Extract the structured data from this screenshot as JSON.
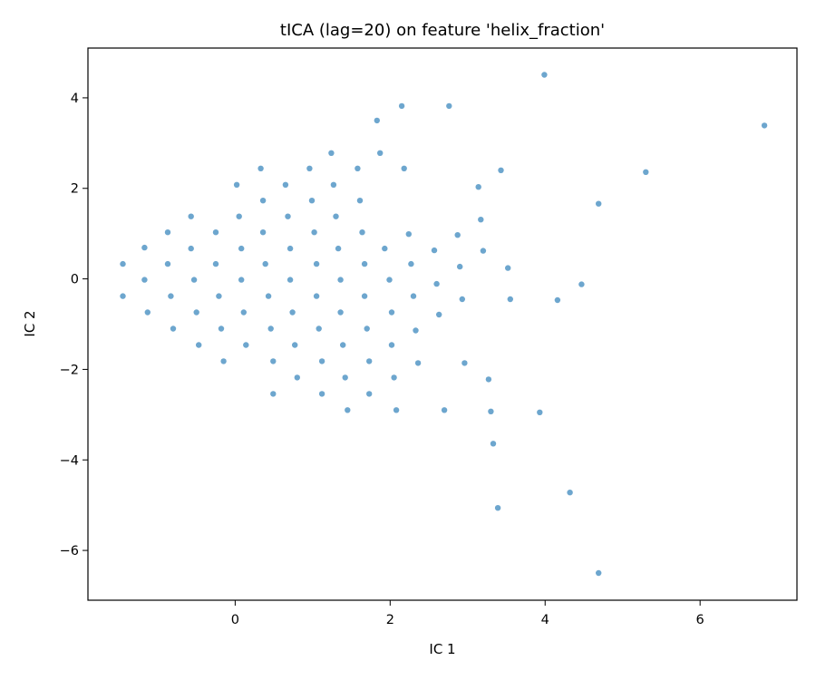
{
  "chart_data": {
    "type": "scatter",
    "title": "tICA (lag=20) on feature 'helix_fraction'",
    "xlabel": "IC 1",
    "ylabel": "IC 2",
    "xlim": [
      -1.9,
      7.25
    ],
    "ylim": [
      -7.1,
      5.1
    ],
    "xticks": [
      0,
      2,
      4,
      6
    ],
    "yticks": [
      4,
      2,
      0,
      -2,
      -4,
      -6
    ],
    "grid": false,
    "legend": "none",
    "marker_color": "#1f77b4",
    "points": [
      [
        -1.45,
        0.33
      ],
      [
        -1.45,
        -0.38
      ],
      [
        -1.17,
        0.69
      ],
      [
        -1.17,
        -0.02
      ],
      [
        -1.13,
        -0.74
      ],
      [
        -0.87,
        1.03
      ],
      [
        -0.87,
        0.33
      ],
      [
        -0.83,
        -0.38
      ],
      [
        -0.8,
        -1.1
      ],
      [
        -0.57,
        1.38
      ],
      [
        -0.57,
        0.67
      ],
      [
        -0.53,
        -0.02
      ],
      [
        -0.5,
        -0.74
      ],
      [
        -0.47,
        -1.46
      ],
      [
        -0.25,
        1.03
      ],
      [
        -0.25,
        0.33
      ],
      [
        -0.21,
        -0.38
      ],
      [
        -0.18,
        -1.1
      ],
      [
        -0.15,
        -1.82
      ],
      [
        0.02,
        2.08
      ],
      [
        0.05,
        1.38
      ],
      [
        0.08,
        0.67
      ],
      [
        0.08,
        -0.02
      ],
      [
        0.11,
        -0.74
      ],
      [
        0.14,
        -1.46
      ],
      [
        0.33,
        2.44
      ],
      [
        0.36,
        1.73
      ],
      [
        0.36,
        1.03
      ],
      [
        0.39,
        0.33
      ],
      [
        0.43,
        -0.38
      ],
      [
        0.46,
        -1.1
      ],
      [
        0.49,
        -1.82
      ],
      [
        0.49,
        -2.54
      ],
      [
        0.65,
        2.08
      ],
      [
        0.68,
        1.38
      ],
      [
        0.71,
        0.67
      ],
      [
        0.71,
        -0.02
      ],
      [
        0.74,
        -0.74
      ],
      [
        0.77,
        -1.46
      ],
      [
        0.8,
        -2.18
      ],
      [
        0.96,
        2.44
      ],
      [
        0.99,
        1.73
      ],
      [
        1.02,
        1.03
      ],
      [
        1.05,
        0.33
      ],
      [
        1.05,
        -0.38
      ],
      [
        1.08,
        -1.1
      ],
      [
        1.12,
        -1.82
      ],
      [
        1.12,
        -2.54
      ],
      [
        1.24,
        2.78
      ],
      [
        1.27,
        2.08
      ],
      [
        1.3,
        1.38
      ],
      [
        1.33,
        0.67
      ],
      [
        1.36,
        -0.02
      ],
      [
        1.36,
        -0.74
      ],
      [
        1.39,
        -1.46
      ],
      [
        1.42,
        -2.18
      ],
      [
        1.45,
        -2.9
      ],
      [
        1.58,
        2.44
      ],
      [
        1.61,
        1.73
      ],
      [
        1.64,
        1.03
      ],
      [
        1.67,
        0.33
      ],
      [
        1.67,
        -0.38
      ],
      [
        1.7,
        -1.1
      ],
      [
        1.73,
        -1.82
      ],
      [
        1.73,
        -2.54
      ],
      [
        1.83,
        3.5
      ],
      [
        1.87,
        2.78
      ],
      [
        1.93,
        0.67
      ],
      [
        1.99,
        -0.02
      ],
      [
        2.02,
        -0.74
      ],
      [
        2.02,
        -1.46
      ],
      [
        2.05,
        -2.18
      ],
      [
        2.08,
        -2.9
      ],
      [
        2.15,
        3.82
      ],
      [
        2.18,
        2.44
      ],
      [
        2.24,
        0.99
      ],
      [
        2.27,
        0.33
      ],
      [
        2.3,
        -0.38
      ],
      [
        2.33,
        -1.14
      ],
      [
        2.36,
        -1.86
      ],
      [
        2.57,
        0.63
      ],
      [
        2.6,
        -0.11
      ],
      [
        2.63,
        -0.79
      ],
      [
        2.7,
        -2.9
      ],
      [
        2.76,
        3.82
      ],
      [
        2.87,
        0.97
      ],
      [
        2.9,
        0.27
      ],
      [
        2.93,
        -0.45
      ],
      [
        2.96,
        -1.86
      ],
      [
        3.14,
        2.03
      ],
      [
        3.17,
        1.31
      ],
      [
        3.2,
        0.62
      ],
      [
        3.27,
        -2.22
      ],
      [
        3.3,
        -2.93
      ],
      [
        3.33,
        -3.64
      ],
      [
        3.39,
        -5.06
      ],
      [
        3.43,
        2.4
      ],
      [
        3.52,
        0.24
      ],
      [
        3.55,
        -0.45
      ],
      [
        3.93,
        -2.95
      ],
      [
        3.99,
        4.51
      ],
      [
        4.16,
        -0.47
      ],
      [
        4.32,
        -4.72
      ],
      [
        4.47,
        -0.12
      ],
      [
        4.69,
        1.66
      ],
      [
        4.69,
        -6.5
      ],
      [
        5.3,
        2.36
      ],
      [
        6.83,
        3.39
      ]
    ]
  }
}
